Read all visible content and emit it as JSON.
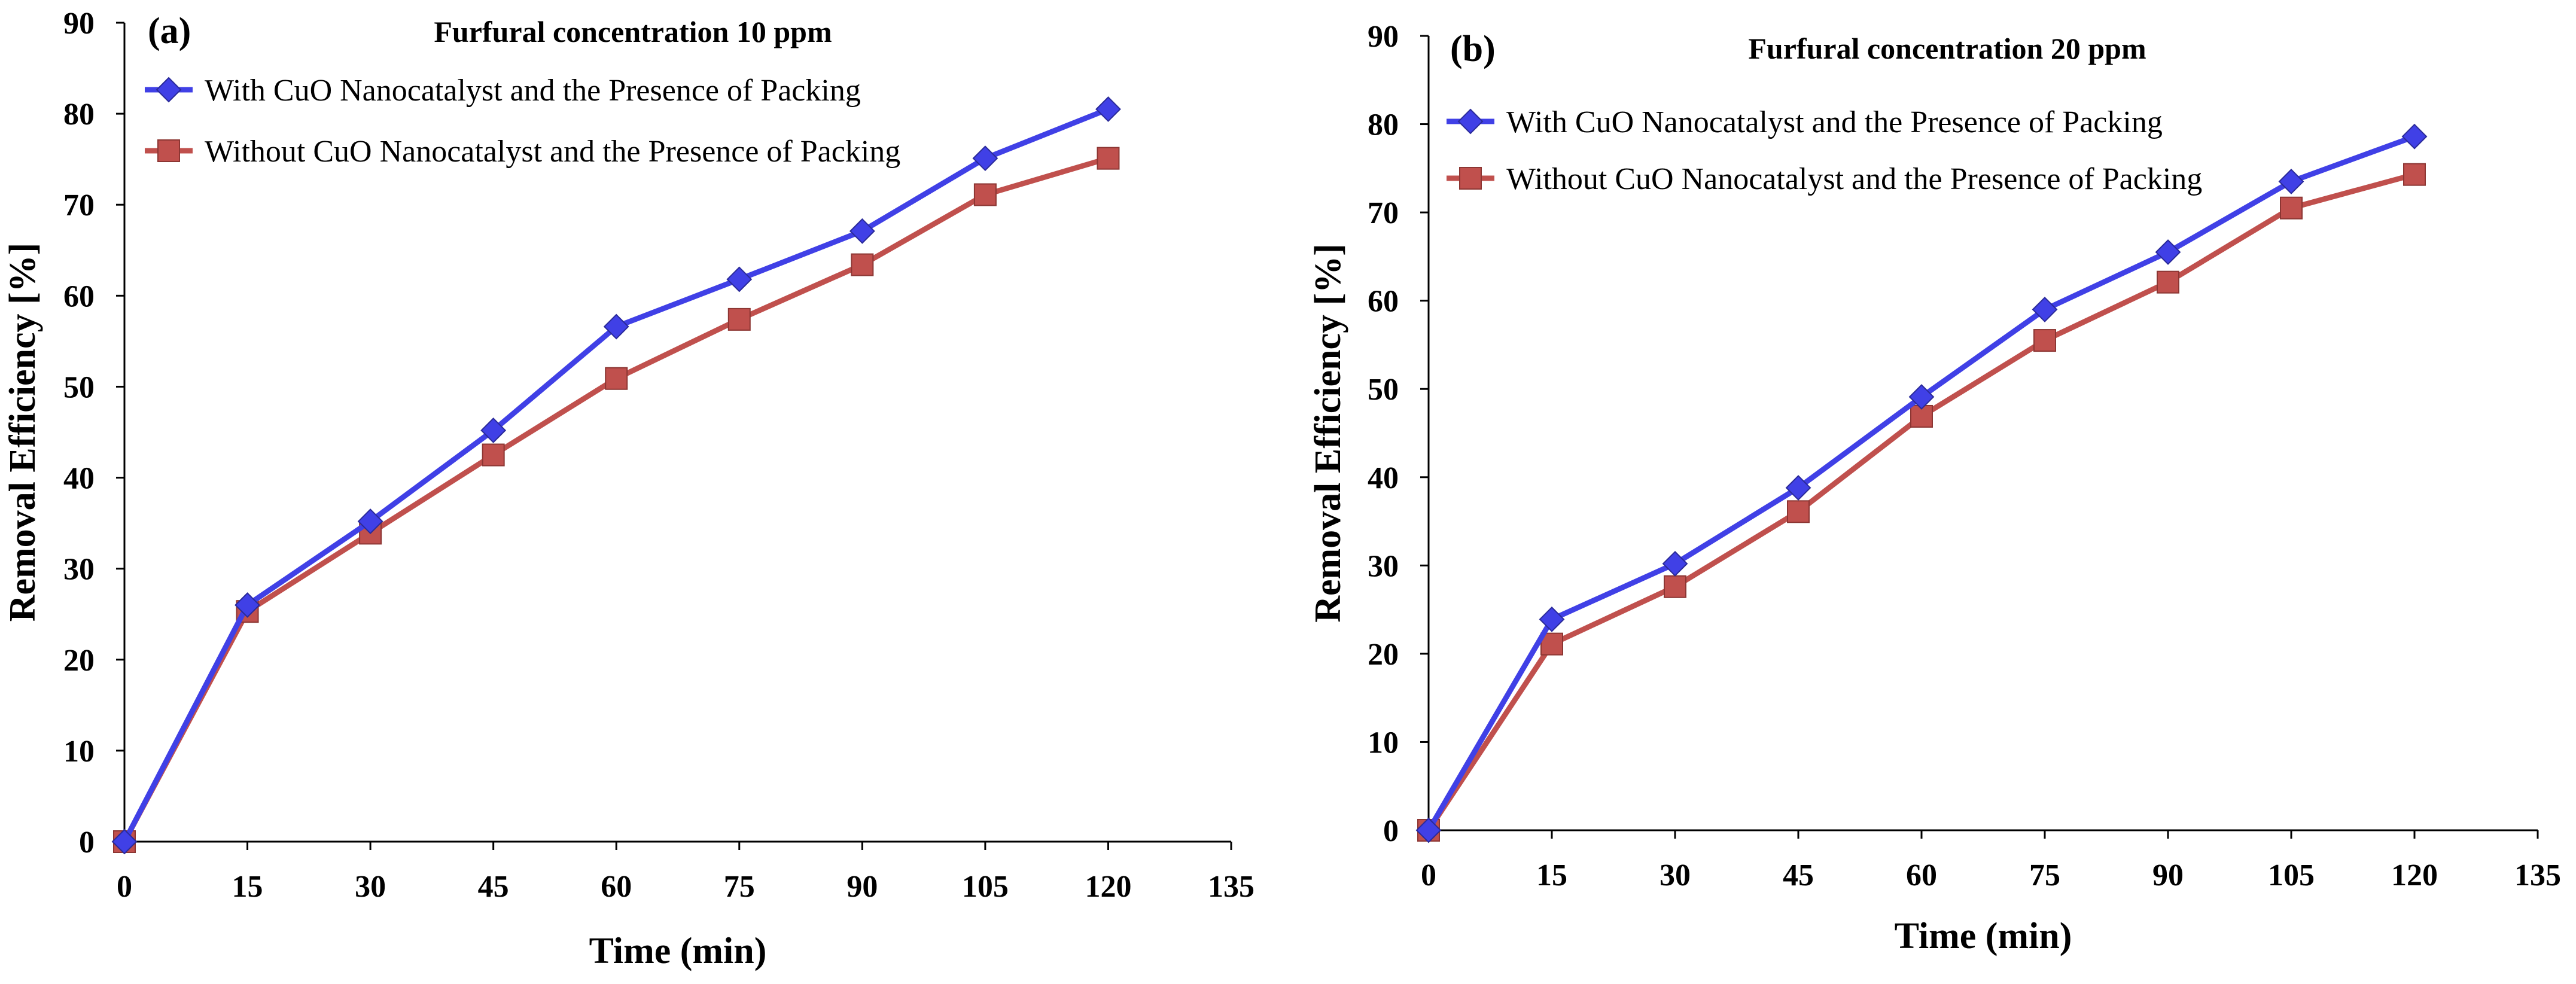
{
  "chart_data": [
    {
      "type": "line",
      "panel_label": "(a)",
      "title": "Furfural concentration 10 ppm",
      "xlabel": "Time (min)",
      "ylabel": "Removal  Efficiency [%]",
      "xlim": [
        0,
        135
      ],
      "ylim": [
        0,
        90
      ],
      "xticks": [
        "0",
        "15",
        "30",
        "45",
        "60",
        "75",
        "90",
        "105",
        "120",
        "135"
      ],
      "yticks": [
        "0",
        "10",
        "20",
        "30",
        "40",
        "50",
        "60",
        "70",
        "80",
        "90"
      ],
      "x": [
        0,
        15,
        30,
        45,
        60,
        75,
        90,
        105,
        120
      ],
      "legend_position": "top-left",
      "series": [
        {
          "name": "With CuO Nanocatalyst and the Presence of Packing",
          "marker": "diamond",
          "color": "#4040e6",
          "values": [
            0,
            26,
            35.2,
            45.2,
            56.6,
            61.8,
            67.1,
            75.1,
            80.5
          ]
        },
        {
          "name": "Without CuO Nanocatalyst and the Presence of Packing",
          "marker": "square",
          "color": "#c0504d",
          "values": [
            0,
            25.3,
            33.9,
            42.5,
            50.9,
            57.4,
            63.4,
            71.1,
            75.1
          ]
        }
      ]
    },
    {
      "type": "line",
      "panel_label": "(b)",
      "title": "Furfural concentration 20 ppm",
      "xlabel": "Time (min)",
      "ylabel": "Removal  Efficiency [%]",
      "xlim": [
        0,
        135
      ],
      "ylim": [
        0,
        90
      ],
      "xticks": [
        "0",
        "15",
        "30",
        "45",
        "60",
        "75",
        "90",
        "105",
        "120",
        "135"
      ],
      "yticks": [
        "0",
        "10",
        "20",
        "30",
        "40",
        "50",
        "60",
        "70",
        "80",
        "90"
      ],
      "x": [
        0,
        15,
        30,
        45,
        60,
        75,
        90,
        105,
        120
      ],
      "legend_position": "top-left",
      "series": [
        {
          "name": "With CuO Nanocatalyst and the Presence of Packing",
          "marker": "diamond",
          "color": "#4040e6",
          "values": [
            0,
            23.9,
            30.2,
            38.8,
            49.1,
            59,
            65.5,
            73.5,
            78.6
          ]
        },
        {
          "name": "Without CuO Nanocatalyst and the Presence of Packing",
          "marker": "square",
          "color": "#c0504d",
          "values": [
            0,
            21.1,
            27.6,
            36.1,
            46.9,
            55.5,
            62.1,
            70.5,
            74.3
          ]
        }
      ]
    }
  ]
}
